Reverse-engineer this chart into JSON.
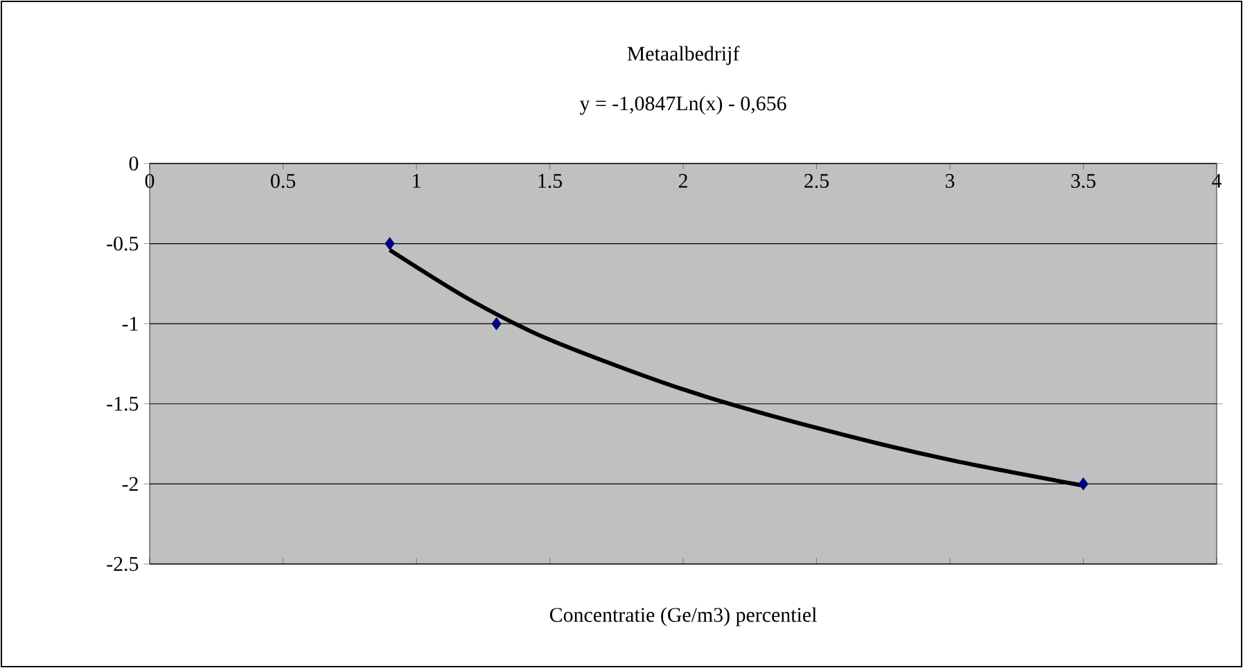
{
  "chart_data": {
    "type": "scatter",
    "title": "Metaalbedrijf",
    "xlabel": "Concentratie (Ge/m3) percentiel",
    "annotations": [
      "y = -1,0847Ln(x) - 0,656"
    ],
    "series": [
      {
        "color": "#000080",
        "marker": "diamond",
        "x": [
          0.9,
          1.3,
          3.5
        ],
        "values": [
          -0.5,
          -1,
          -2
        ]
      },
      {
        "type": "line",
        "color": "#000000",
        "marker": "none",
        "x": [
          0.9,
          1.2,
          1.5,
          2,
          2.5,
          3,
          3.5
        ],
        "values": [
          -0.54,
          -0.85,
          -1.1,
          -1.41,
          -1.65,
          -1.85,
          -2.01
        ]
      }
    ],
    "xlim": [
      0,
      4
    ],
    "xticks": [
      0,
      0.5,
      1,
      1.5,
      2,
      2.5,
      3,
      3.5,
      4
    ],
    "ylim": [
      -2.5,
      0
    ],
    "yticks": [
      -2.5,
      -2,
      -1.5,
      -1,
      -0.5,
      0
    ],
    "grid": "y"
  }
}
